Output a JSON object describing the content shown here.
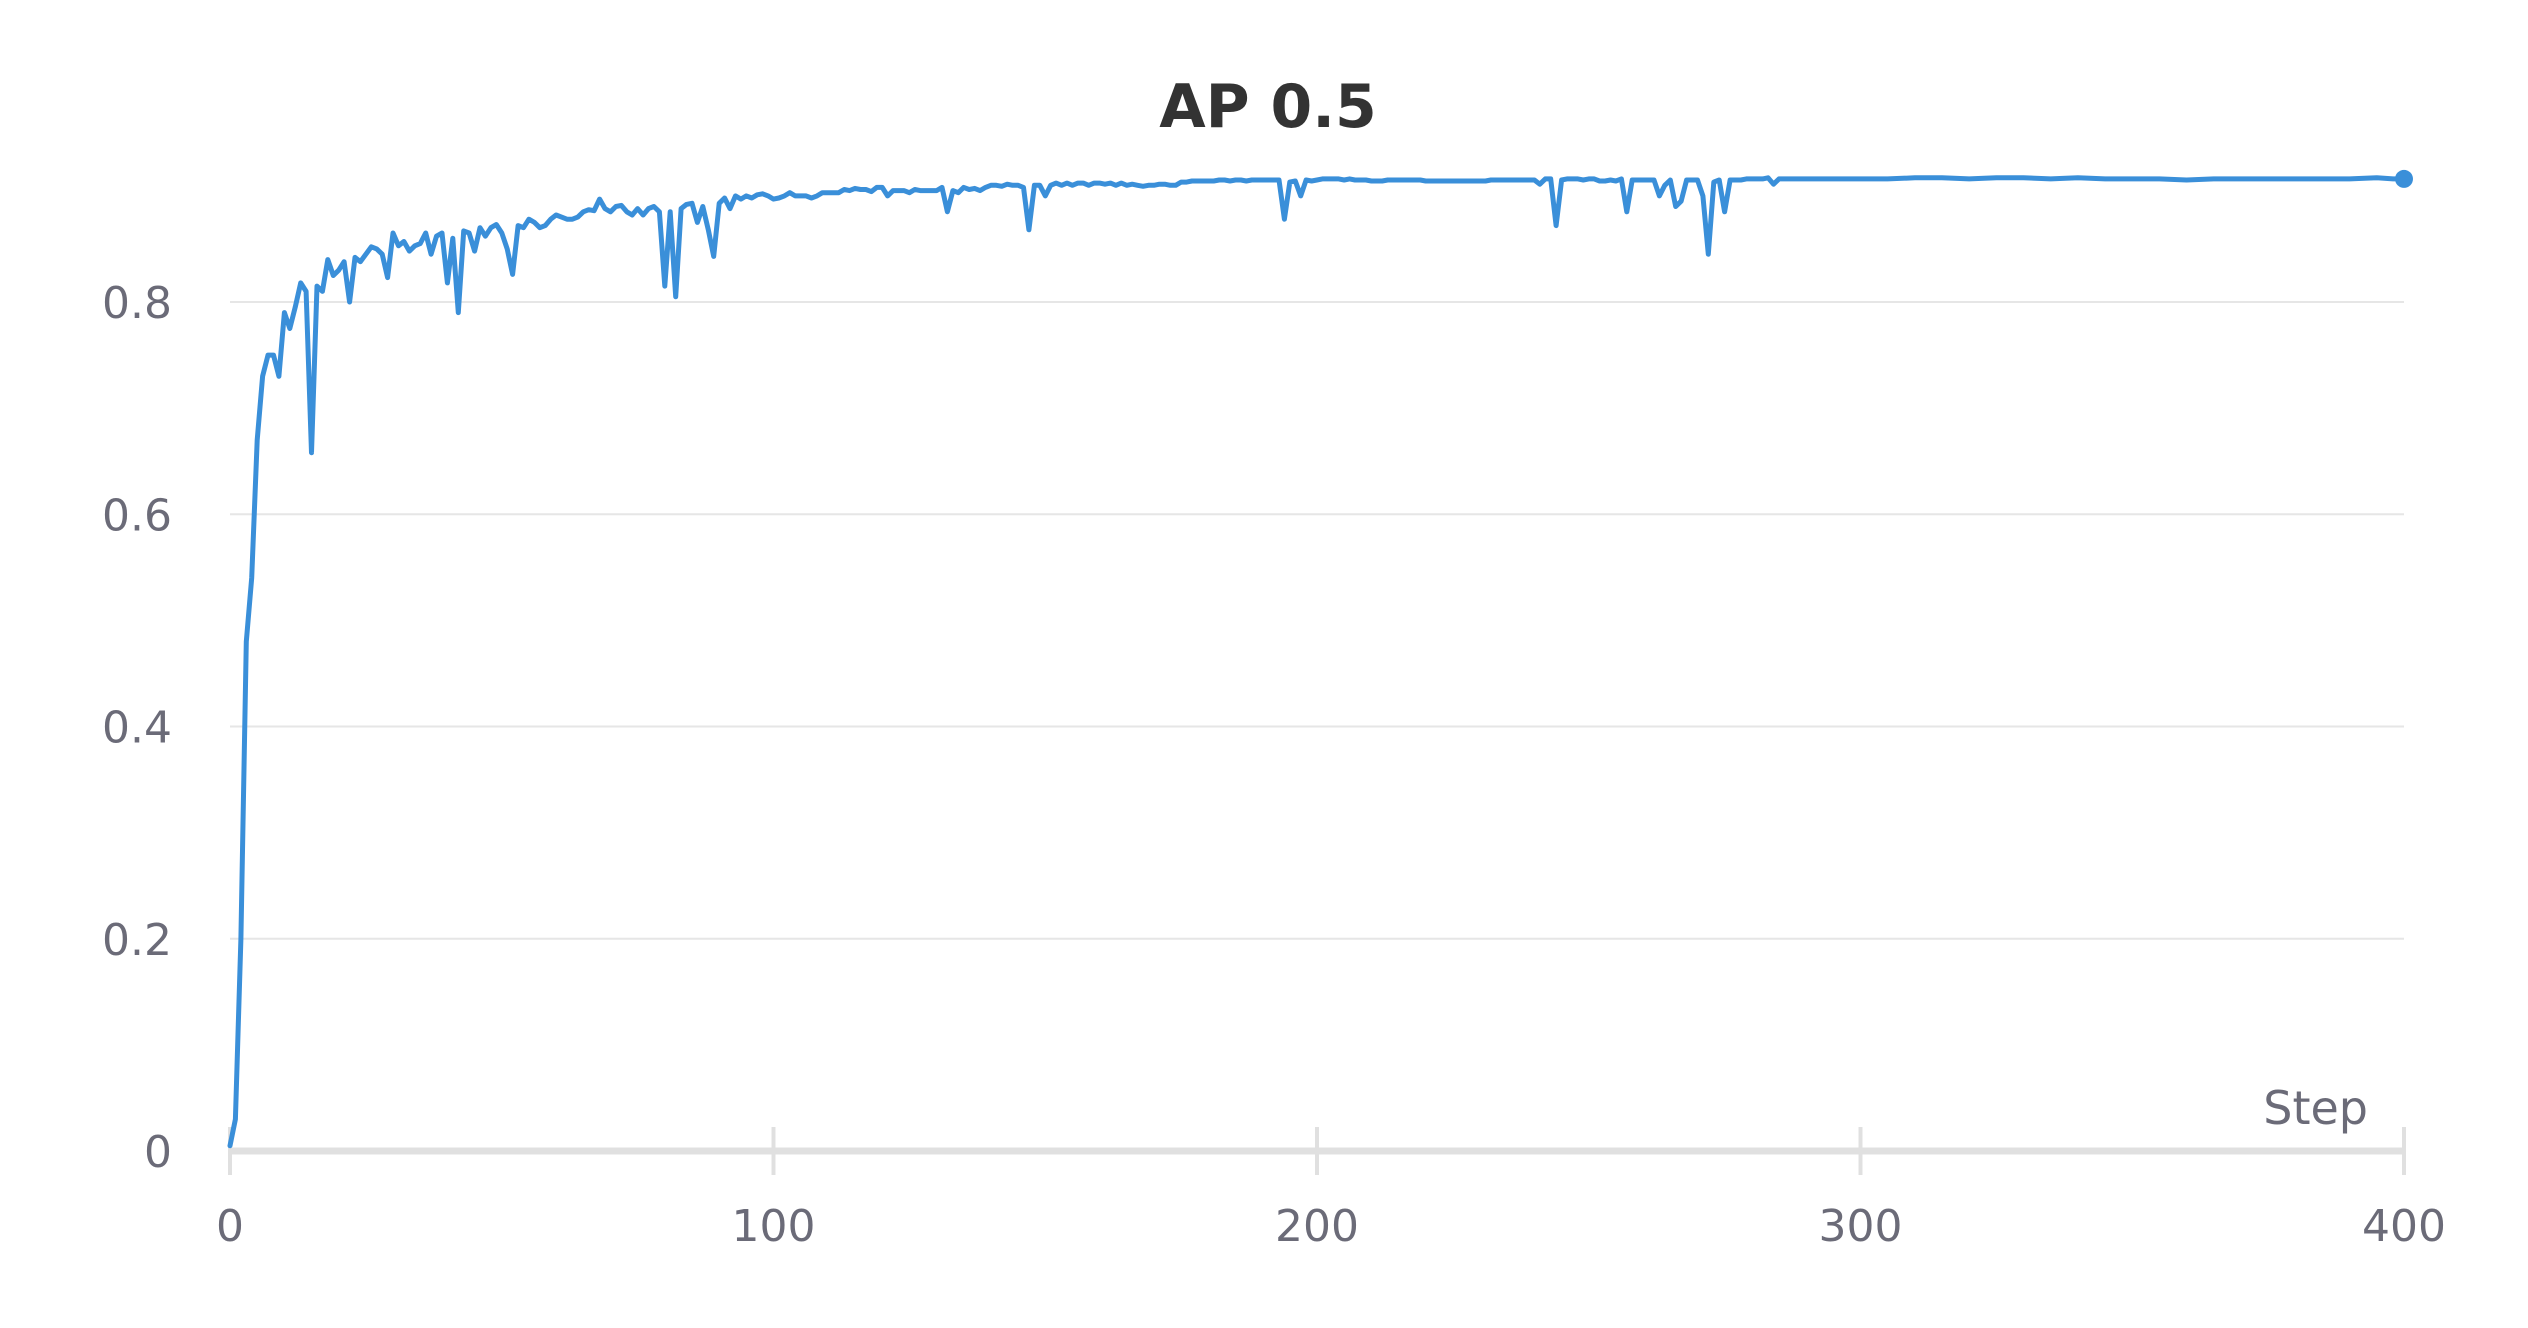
{
  "chart_data": {
    "type": "line",
    "title": "AP 0.5",
    "xlabel": "Step",
    "ylabel": "",
    "xlim": [
      0,
      400
    ],
    "ylim": [
      0,
      0.92
    ],
    "x_ticks": [
      0,
      100,
      200,
      300,
      400
    ],
    "x_tick_labels": [
      "0",
      "100",
      "200",
      "300",
      "400"
    ],
    "y_ticks": [
      0,
      0.2,
      0.4,
      0.6,
      0.8
    ],
    "y_tick_labels": [
      "0",
      "0.2",
      "0.4",
      "0.6",
      "0.8"
    ],
    "grid": true,
    "color": "#3a8fd9",
    "series": [
      {
        "values": [
          [
            0,
            0.005
          ],
          [
            1,
            0.03
          ],
          [
            2,
            0.2
          ],
          [
            3,
            0.48
          ],
          [
            4,
            0.54
          ],
          [
            5,
            0.67
          ],
          [
            6,
            0.73
          ],
          [
            7,
            0.75
          ],
          [
            8,
            0.75
          ],
          [
            9,
            0.73
          ],
          [
            10,
            0.79
          ],
          [
            11,
            0.775
          ],
          [
            12,
            0.795
          ],
          [
            13,
            0.818
          ],
          [
            14,
            0.81
          ],
          [
            15,
            0.658
          ],
          [
            16,
            0.815
          ],
          [
            17,
            0.81
          ],
          [
            18,
            0.84
          ],
          [
            19,
            0.825
          ],
          [
            20,
            0.83
          ],
          [
            21,
            0.838
          ],
          [
            22,
            0.8
          ],
          [
            23,
            0.842
          ],
          [
            24,
            0.838
          ],
          [
            25,
            0.845
          ],
          [
            26,
            0.852
          ],
          [
            27,
            0.85
          ],
          [
            28,
            0.845
          ],
          [
            29,
            0.823
          ],
          [
            30,
            0.865
          ],
          [
            31,
            0.853
          ],
          [
            32,
            0.857
          ],
          [
            33,
            0.848
          ],
          [
            34,
            0.853
          ],
          [
            35,
            0.855
          ],
          [
            36,
            0.865
          ],
          [
            37,
            0.845
          ],
          [
            38,
            0.862
          ],
          [
            39,
            0.865
          ],
          [
            40,
            0.818
          ],
          [
            41,
            0.86
          ],
          [
            42,
            0.79
          ],
          [
            43,
            0.867
          ],
          [
            44,
            0.865
          ],
          [
            45,
            0.848
          ],
          [
            46,
            0.87
          ],
          [
            47,
            0.862
          ],
          [
            48,
            0.87
          ],
          [
            49,
            0.873
          ],
          [
            50,
            0.865
          ],
          [
            51,
            0.85
          ],
          [
            52,
            0.826
          ],
          [
            53,
            0.872
          ],
          [
            54,
            0.87
          ],
          [
            55,
            0.878
          ],
          [
            56,
            0.875
          ],
          [
            57,
            0.87
          ],
          [
            58,
            0.872
          ],
          [
            59,
            0.878
          ],
          [
            60,
            0.882
          ],
          [
            61,
            0.88
          ],
          [
            62,
            0.878
          ],
          [
            63,
            0.878
          ],
          [
            64,
            0.88
          ],
          [
            65,
            0.885
          ],
          [
            66,
            0.887
          ],
          [
            67,
            0.886
          ],
          [
            68,
            0.897
          ],
          [
            69,
            0.888
          ],
          [
            70,
            0.885
          ],
          [
            71,
            0.89
          ],
          [
            72,
            0.891
          ],
          [
            73,
            0.885
          ],
          [
            74,
            0.882
          ],
          [
            75,
            0.888
          ],
          [
            76,
            0.882
          ],
          [
            77,
            0.888
          ],
          [
            78,
            0.89
          ],
          [
            79,
            0.885
          ],
          [
            80,
            0.815
          ],
          [
            81,
            0.885
          ],
          [
            82,
            0.805
          ],
          [
            83,
            0.888
          ],
          [
            84,
            0.892
          ],
          [
            85,
            0.893
          ],
          [
            86,
            0.875
          ],
          [
            87,
            0.89
          ],
          [
            88,
            0.868
          ],
          [
            89,
            0.843
          ],
          [
            90,
            0.893
          ],
          [
            91,
            0.898
          ],
          [
            92,
            0.888
          ],
          [
            93,
            0.9
          ],
          [
            94,
            0.897
          ],
          [
            95,
            0.9
          ],
          [
            96,
            0.898
          ],
          [
            97,
            0.901
          ],
          [
            98,
            0.902
          ],
          [
            99,
            0.9
          ],
          [
            100,
            0.897
          ],
          [
            101,
            0.898
          ],
          [
            102,
            0.9
          ],
          [
            103,
            0.903
          ],
          [
            104,
            0.9
          ],
          [
            105,
            0.9
          ],
          [
            106,
            0.9
          ],
          [
            107,
            0.898
          ],
          [
            108,
            0.9
          ],
          [
            109,
            0.903
          ],
          [
            110,
            0.903
          ],
          [
            111,
            0.903
          ],
          [
            112,
            0.903
          ],
          [
            113,
            0.906
          ],
          [
            114,
            0.905
          ],
          [
            115,
            0.907
          ],
          [
            116,
            0.906
          ],
          [
            117,
            0.906
          ],
          [
            118,
            0.904
          ],
          [
            119,
            0.908
          ],
          [
            120,
            0.908
          ],
          [
            121,
            0.9
          ],
          [
            122,
            0.905
          ],
          [
            123,
            0.905
          ],
          [
            124,
            0.905
          ],
          [
            125,
            0.903
          ],
          [
            126,
            0.906
          ],
          [
            127,
            0.905
          ],
          [
            128,
            0.905
          ],
          [
            129,
            0.905
          ],
          [
            130,
            0.905
          ],
          [
            131,
            0.908
          ],
          [
            132,
            0.885
          ],
          [
            133,
            0.905
          ],
          [
            134,
            0.903
          ],
          [
            135,
            0.908
          ],
          [
            136,
            0.906
          ],
          [
            137,
            0.907
          ],
          [
            138,
            0.905
          ],
          [
            139,
            0.908
          ],
          [
            140,
            0.91
          ],
          [
            141,
            0.91
          ],
          [
            142,
            0.909
          ],
          [
            143,
            0.911
          ],
          [
            144,
            0.91
          ],
          [
            145,
            0.91
          ],
          [
            146,
            0.908
          ],
          [
            147,
            0.868
          ],
          [
            148,
            0.91
          ],
          [
            149,
            0.91
          ],
          [
            150,
            0.9
          ],
          [
            151,
            0.91
          ],
          [
            152,
            0.912
          ],
          [
            153,
            0.91
          ],
          [
            154,
            0.912
          ],
          [
            155,
            0.91
          ],
          [
            156,
            0.912
          ],
          [
            157,
            0.912
          ],
          [
            158,
            0.91
          ],
          [
            159,
            0.912
          ],
          [
            160,
            0.912
          ],
          [
            161,
            0.911
          ],
          [
            162,
            0.912
          ],
          [
            163,
            0.91
          ],
          [
            164,
            0.912
          ],
          [
            165,
            0.91
          ],
          [
            166,
            0.911
          ],
          [
            167,
            0.91
          ],
          [
            168,
            0.909
          ],
          [
            169,
            0.91
          ],
          [
            170,
            0.91
          ],
          [
            171,
            0.911
          ],
          [
            172,
            0.911
          ],
          [
            173,
            0.91
          ],
          [
            174,
            0.91
          ],
          [
            175,
            0.913
          ],
          [
            176,
            0.913
          ],
          [
            177,
            0.914
          ],
          [
            178,
            0.914
          ],
          [
            179,
            0.914
          ],
          [
            180,
            0.914
          ],
          [
            181,
            0.914
          ],
          [
            182,
            0.915
          ],
          [
            183,
            0.915
          ],
          [
            184,
            0.914
          ],
          [
            185,
            0.915
          ],
          [
            186,
            0.915
          ],
          [
            187,
            0.914
          ],
          [
            188,
            0.915
          ],
          [
            189,
            0.915
          ],
          [
            190,
            0.915
          ],
          [
            191,
            0.915
          ],
          [
            192,
            0.915
          ],
          [
            193,
            0.915
          ],
          [
            194,
            0.878
          ],
          [
            195,
            0.913
          ],
          [
            196,
            0.914
          ],
          [
            197,
            0.9
          ],
          [
            198,
            0.915
          ],
          [
            199,
            0.914
          ],
          [
            200,
            0.915
          ],
          [
            201,
            0.916
          ],
          [
            202,
            0.916
          ],
          [
            203,
            0.916
          ],
          [
            204,
            0.916
          ],
          [
            205,
            0.915
          ],
          [
            206,
            0.916
          ],
          [
            207,
            0.915
          ],
          [
            208,
            0.915
          ],
          [
            209,
            0.915
          ],
          [
            210,
            0.914
          ],
          [
            211,
            0.914
          ],
          [
            212,
            0.914
          ],
          [
            213,
            0.915
          ],
          [
            214,
            0.915
          ],
          [
            215,
            0.915
          ],
          [
            216,
            0.915
          ],
          [
            217,
            0.915
          ],
          [
            218,
            0.915
          ],
          [
            219,
            0.915
          ],
          [
            220,
            0.914
          ],
          [
            221,
            0.914
          ],
          [
            222,
            0.914
          ],
          [
            223,
            0.914
          ],
          [
            224,
            0.914
          ],
          [
            225,
            0.914
          ],
          [
            226,
            0.914
          ],
          [
            227,
            0.914
          ],
          [
            228,
            0.914
          ],
          [
            229,
            0.914
          ],
          [
            230,
            0.914
          ],
          [
            231,
            0.914
          ],
          [
            232,
            0.915
          ],
          [
            233,
            0.915
          ],
          [
            234,
            0.915
          ],
          [
            235,
            0.915
          ],
          [
            236,
            0.915
          ],
          [
            237,
            0.915
          ],
          [
            238,
            0.915
          ],
          [
            239,
            0.915
          ],
          [
            240,
            0.915
          ],
          [
            241,
            0.911
          ],
          [
            242,
            0.916
          ],
          [
            243,
            0.916
          ],
          [
            244,
            0.872
          ],
          [
            245,
            0.915
          ],
          [
            246,
            0.916
          ],
          [
            247,
            0.916
          ],
          [
            248,
            0.916
          ],
          [
            249,
            0.915
          ],
          [
            250,
            0.916
          ],
          [
            251,
            0.916
          ],
          [
            252,
            0.914
          ],
          [
            253,
            0.914
          ],
          [
            254,
            0.915
          ],
          [
            255,
            0.914
          ],
          [
            256,
            0.916
          ],
          [
            257,
            0.885
          ],
          [
            258,
            0.915
          ],
          [
            259,
            0.915
          ],
          [
            260,
            0.915
          ],
          [
            261,
            0.915
          ],
          [
            262,
            0.915
          ],
          [
            263,
            0.9
          ],
          [
            264,
            0.91
          ],
          [
            265,
            0.915
          ],
          [
            266,
            0.89
          ],
          [
            267,
            0.895
          ],
          [
            268,
            0.915
          ],
          [
            269,
            0.915
          ],
          [
            270,
            0.915
          ],
          [
            271,
            0.9
          ],
          [
            272,
            0.845
          ],
          [
            273,
            0.913
          ],
          [
            274,
            0.915
          ],
          [
            275,
            0.885
          ],
          [
            276,
            0.915
          ],
          [
            277,
            0.915
          ],
          [
            278,
            0.915
          ],
          [
            279,
            0.916
          ],
          [
            280,
            0.916
          ],
          [
            281,
            0.916
          ],
          [
            282,
            0.916
          ],
          [
            283,
            0.917
          ],
          [
            284,
            0.911
          ],
          [
            285,
            0.916
          ],
          [
            286,
            0.916
          ],
          [
            287,
            0.916
          ],
          [
            288,
            0.916
          ],
          [
            289,
            0.916
          ],
          [
            290,
            0.916
          ],
          [
            292,
            0.916
          ],
          [
            294,
            0.916
          ],
          [
            296,
            0.916
          ],
          [
            298,
            0.916
          ],
          [
            300,
            0.916
          ],
          [
            305,
            0.916
          ],
          [
            310,
            0.917
          ],
          [
            315,
            0.917
          ],
          [
            320,
            0.916
          ],
          [
            325,
            0.917
          ],
          [
            330,
            0.917
          ],
          [
            335,
            0.916
          ],
          [
            340,
            0.917
          ],
          [
            345,
            0.916
          ],
          [
            350,
            0.916
          ],
          [
            355,
            0.916
          ],
          [
            360,
            0.915
          ],
          [
            365,
            0.916
          ],
          [
            370,
            0.916
          ],
          [
            375,
            0.916
          ],
          [
            380,
            0.916
          ],
          [
            385,
            0.916
          ],
          [
            390,
            0.916
          ],
          [
            395,
            0.917
          ],
          [
            398,
            0.916
          ],
          [
            400,
            0.916
          ]
        ]
      }
    ]
  }
}
